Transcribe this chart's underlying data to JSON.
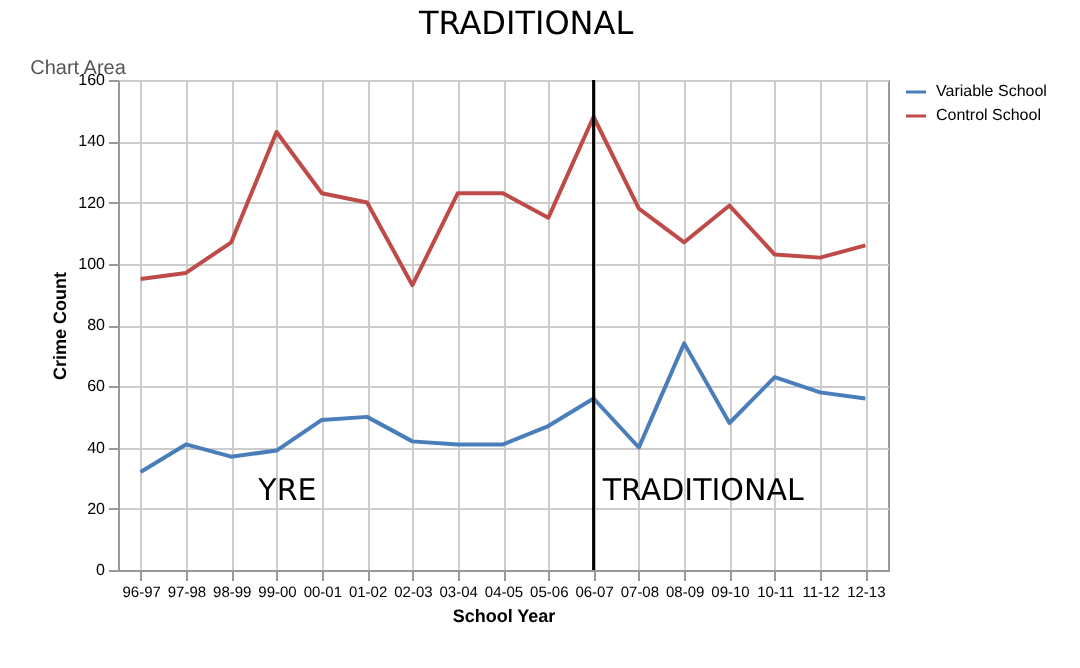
{
  "chart_data": {
    "type": "line",
    "xlabel": "School Year",
    "ylabel": "Crime Count",
    "categories": [
      "96-97",
      "97-98",
      "98-99",
      "99-00",
      "00-01",
      "01-02",
      "02-03",
      "03-04",
      "04-05",
      "05-06",
      "06-07",
      "07-08",
      "08-09",
      "09-10",
      "10-11",
      "11-12",
      "12-13"
    ],
    "series": [
      {
        "name": "Variable School",
        "color": "#4a7ebb",
        "values": [
          32,
          41,
          37,
          39,
          49,
          50,
          42,
          41,
          41,
          47,
          56,
          40,
          74,
          48,
          63,
          58,
          56
        ]
      },
      {
        "name": "Control School",
        "color": "#be4b48",
        "values": [
          95,
          97,
          107,
          143,
          123,
          120,
          93,
          123,
          123,
          115,
          148,
          118,
          107,
          119,
          103,
          102,
          106
        ]
      }
    ],
    "ylim": [
      0,
      160
    ],
    "yticks": [
      0,
      20,
      40,
      60,
      80,
      100,
      120,
      140,
      160
    ],
    "grid": true,
    "legend": "right",
    "ref_lines": [
      {
        "axis": "x",
        "value": "06-07",
        "color": "#000000"
      }
    ],
    "annotations": [
      "TRADITIONAL",
      "YRE",
      "TRADITIONAL",
      "Chart Area"
    ]
  }
}
